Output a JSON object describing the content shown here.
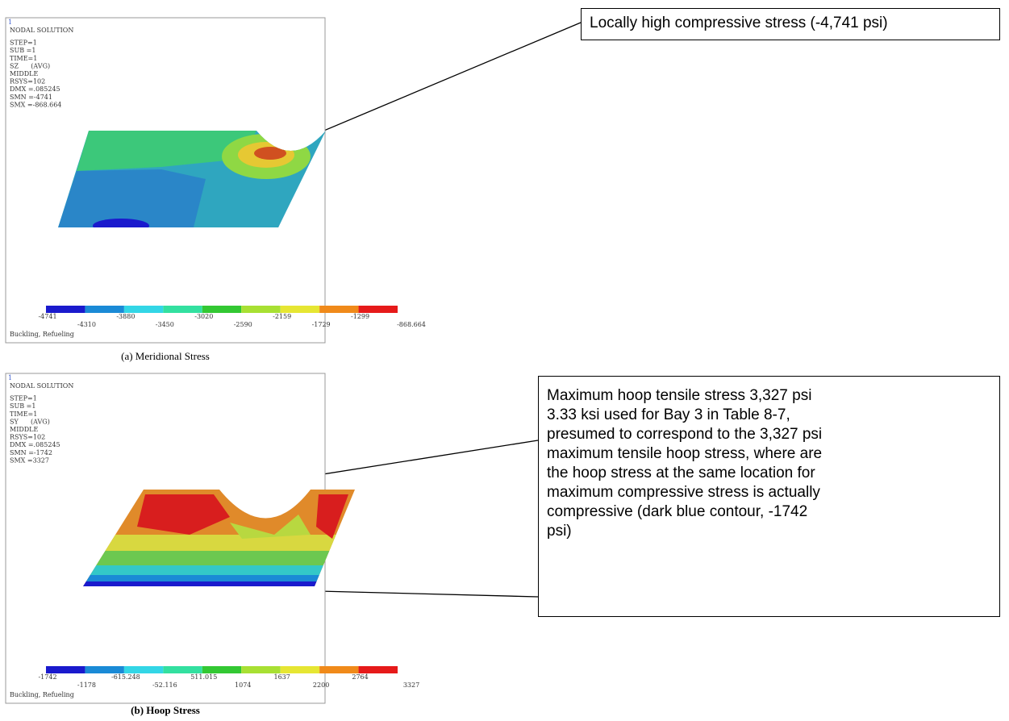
{
  "figures": [
    {
      "window_number": "1",
      "header": [
        "NODAL SOLUTION",
        "STEP=1",
        "SUB =1",
        "TIME=1",
        "SZ      (AVG)",
        "MIDDLE",
        "RSYS=102",
        "DMX =.085245",
        "SMN =-4741",
        "SMX =-868.664"
      ],
      "legend_labels": [
        "-4741",
        "-4310",
        "-3880",
        "-3450",
        "-3020",
        "-2590",
        "-2159",
        "-1729",
        "-1299",
        "-868.664"
      ],
      "footer": "Buckling, Refueling",
      "caption": "(a) Meridional Stress"
    },
    {
      "window_number": "1",
      "header": [
        "NODAL SOLUTION",
        "STEP=1",
        "SUB =1",
        "TIME=1",
        "SY      (AVG)",
        "MIDDLE",
        "RSYS=102",
        "DMX =.085245",
        "SMN =-1742",
        "SMX =3327"
      ],
      "legend_labels": [
        "-1742",
        "-1178",
        "-615.248",
        "-52.116",
        "511.015",
        "1074",
        "1637",
        "2200",
        "2764",
        "3327"
      ],
      "footer": "Buckling, Refueling",
      "caption": "(b) Hoop Stress"
    }
  ],
  "callouts": [
    {
      "lines": [
        "Locally high compressive stress (-4,741 psi)"
      ]
    },
    {
      "lines": [
        "Maximum hoop tensile stress 3,327 psi",
        "3.33 ksi used for Bay 3 in Table 8-7,",
        "presumed to correspond to the 3,327 psi",
        "maximum tensile hoop stress, where are",
        "the hoop stress at the same location for",
        "maximum compressive stress is actually",
        "compressive (dark blue contour, -1742",
        "psi)"
      ]
    }
  ]
}
